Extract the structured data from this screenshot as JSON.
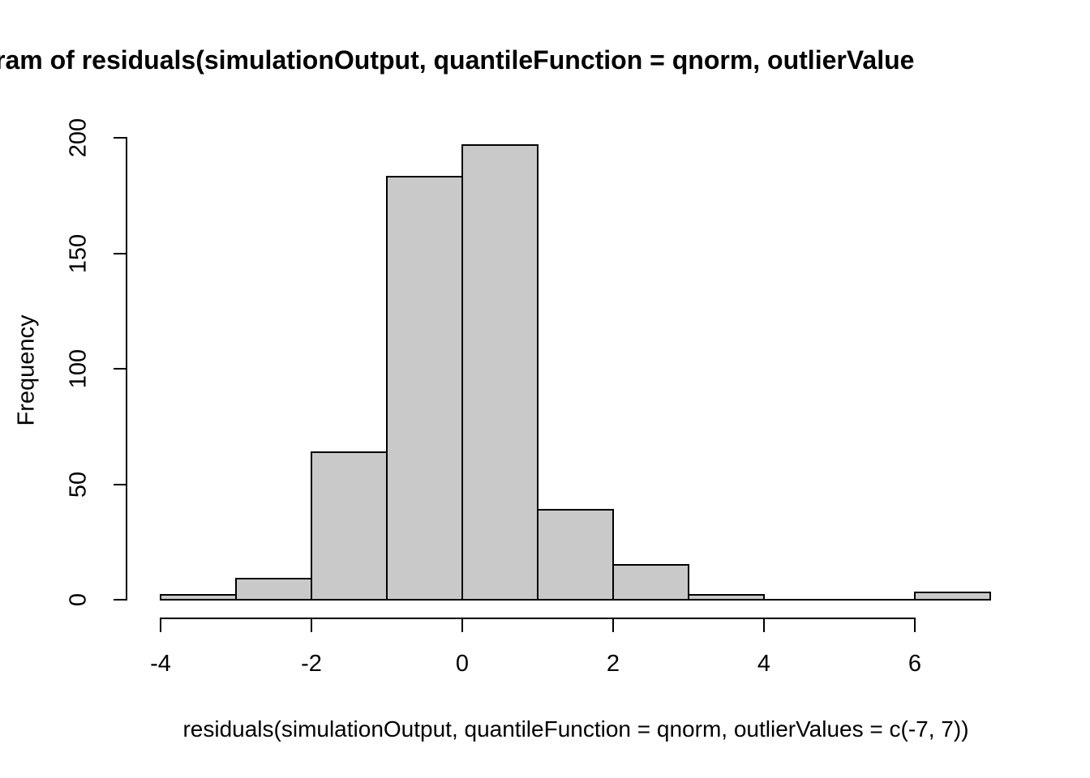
{
  "chart_data": {
    "type": "bar",
    "subtype": "histogram",
    "title": "ram of residuals(simulationOutput, quantileFunction = qnorm, outlierValue",
    "xlabel": "residuals(simulationOutput, quantileFunction = qnorm, outlierValues = c(-7, 7))",
    "ylabel": "Frequency",
    "bin_breaks": [
      -4,
      -3,
      -2,
      -1,
      0,
      1,
      2,
      3,
      4,
      5,
      6,
      7
    ],
    "counts": [
      2,
      9,
      64,
      183,
      197,
      39,
      15,
      2,
      0,
      0,
      3
    ],
    "x_ticks": [
      -4,
      -2,
      0,
      2,
      4,
      6
    ],
    "y_ticks": [
      0,
      50,
      100,
      150,
      200
    ],
    "xlim": [
      -4,
      7
    ],
    "ylim": [
      0,
      200
    ],
    "grid": false,
    "legend": false,
    "bar_fill_color": "#c9c9c9",
    "bar_border_color": "#000000",
    "axis_color": "#000000",
    "background_color": "#ffffff",
    "text_color": "#000000"
  }
}
